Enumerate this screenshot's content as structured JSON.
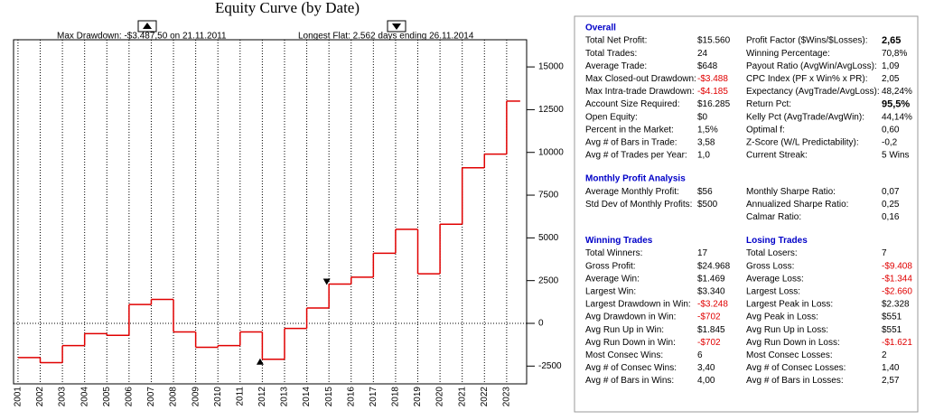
{
  "chart_data": {
    "type": "step",
    "title": "Equity Curve (by Date)",
    "annotations": [
      "Max Drawdown: -$3.487,50 on 21.11.2011",
      "Longest Flat: 2.562 days ending 26.11.2014"
    ],
    "x": [
      2001,
      2002,
      2003,
      2004,
      2005,
      2006,
      2007,
      2008,
      2009,
      2010,
      2011,
      2012,
      2013,
      2014,
      2015,
      2016,
      2017,
      2018,
      2019,
      2020,
      2021,
      2022,
      2023
    ],
    "values": [
      -2000,
      -2300,
      -1300,
      -600,
      -700,
      1100,
      1400,
      -500,
      -1400,
      -1300,
      -500,
      -2100,
      -300,
      900,
      2300,
      2700,
      4100,
      5500,
      2900,
      5800,
      9100,
      9900,
      13000
    ],
    "color": "#e00000",
    "markers": [
      {
        "x": 2011.9,
        "y": -2100
      },
      {
        "x": 2014.9,
        "y": 2300
      }
    ],
    "xlim": [
      2000.8,
      2023.9
    ],
    "xticks": [
      2001,
      2002,
      2003,
      2004,
      2005,
      2006,
      2007,
      2008,
      2009,
      2010,
      2011,
      2012,
      2013,
      2014,
      2015,
      2016,
      2017,
      2018,
      2019,
      2020,
      2021,
      2022,
      2023
    ],
    "ylim": [
      -3540,
      16590
    ],
    "yticks": [
      -2500,
      0,
      2500,
      5000,
      7500,
      10000,
      12500,
      15000
    ],
    "grid": true,
    "zero_line": true
  },
  "panel": {
    "sections": [
      {
        "titles": [
          "Overall"
        ],
        "rows": [
          [
            "Total Net Profit:",
            "$15.560",
            "Profit Factor ($Wins/$Losses):",
            "2,65"
          ],
          [
            "Total Trades:",
            "24",
            "Winning Percentage:",
            "70,8%"
          ],
          [
            "Average Trade:",
            "$648",
            "Payout Ratio (AvgWin/AvgLoss):",
            "1,09"
          ],
          [
            "Max Closed-out Drawdown:",
            "-$3.488",
            "CPC Index (PF x Win% x PR):",
            "2,05"
          ],
          [
            "Max Intra-trade Drawdown:",
            "-$4.185",
            "Expectancy (AvgTrade/AvgLoss):",
            "48,24%"
          ],
          [
            "Account Size Required:",
            "$16.285",
            "Return Pct:",
            "95,5%"
          ],
          [
            "Open Equity:",
            "$0",
            "Kelly Pct (AvgTrade/AvgWin):",
            "44,14%"
          ],
          [
            "Percent in the Market:",
            "1,5%",
            "Optimal f:",
            "0,60"
          ],
          [
            "Avg # of Bars in Trade:",
            "3,58",
            "Z-Score (W/L Predictability):",
            "-0,2"
          ],
          [
            "Avg # of Trades per Year:",
            "1,0",
            "Current Streak:",
            "5 Wins"
          ]
        ]
      },
      {
        "titles": [
          "Monthly Profit Analysis"
        ],
        "rows": [
          [
            "Average Monthly Profit:",
            "$56",
            "Monthly Sharpe Ratio:",
            "0,07"
          ],
          [
            "Std Dev of Monthly Profits:",
            "$500",
            "Annualized Sharpe Ratio:",
            "0,25"
          ],
          [
            null,
            null,
            "Calmar Ratio:",
            "0,16"
          ]
        ]
      },
      {
        "titles": [
          "Winning Trades",
          "Losing Trades"
        ],
        "rows": [
          [
            "Total Winners:",
            "17",
            "Total Losers:",
            "7"
          ],
          [
            "Gross Profit:",
            "$24.968",
            "Gross Loss:",
            "-$9.408"
          ],
          [
            "Average Win:",
            "$1.469",
            "Average Loss:",
            "-$1.344"
          ],
          [
            "Largest Win:",
            "$3.340",
            "Largest Loss:",
            "-$2.660"
          ],
          [
            "Largest Drawdown in Win:",
            "-$3.248",
            "Largest Peak in Loss:",
            "$2.328"
          ],
          [
            "Avg Drawdown in Win:",
            "-$702",
            "Avg Peak in Loss:",
            "$551"
          ],
          [
            "Avg Run Up in Win:",
            "$1.845",
            "Avg Run Up in Loss:",
            "$551"
          ],
          [
            "Avg Run Down in Win:",
            "-$702",
            "Avg Run Down in Loss:",
            "-$1.621"
          ],
          [
            "Most Consec Wins:",
            "6",
            "Most Consec Losses:",
            "2"
          ],
          [
            "Avg # of Consec Wins:",
            "3,40",
            "Avg # of Consec Losses:",
            "1,40"
          ],
          [
            "Avg # of Bars in Wins:",
            "4,00",
            "Avg # of Bars in Losses:",
            "2,57"
          ]
        ]
      }
    ]
  }
}
